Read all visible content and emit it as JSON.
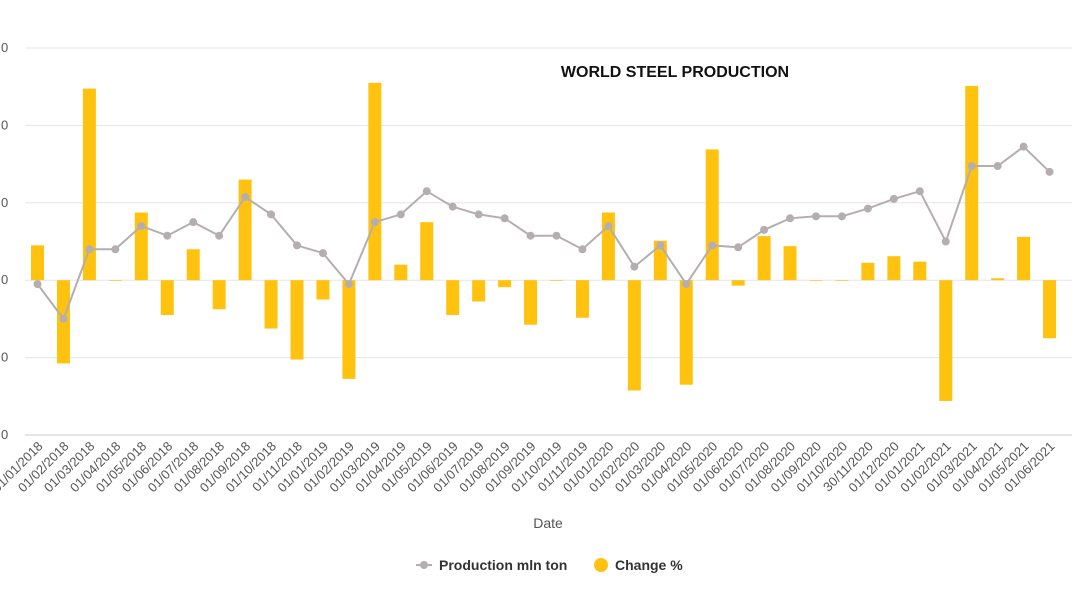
{
  "chart_data": {
    "type": "bar",
    "title": "WORLD STEEL PRODUCTION",
    "xlabel": "Date",
    "ylabel": "",
    "categories": [
      "01/01/2018",
      "01/02/2018",
      "01/03/2018",
      "01/04/2018",
      "01/05/2018",
      "01/06/2018",
      "01/07/2018",
      "01/08/2018",
      "01/09/2018",
      "01/10/2018",
      "01/11/2018",
      "01/01/2019",
      "01/02/2019",
      "01/03/2019",
      "01/04/2019",
      "01/05/2019",
      "01/06/2019",
      "01/07/2019",
      "01/08/2019",
      "01/09/2019",
      "01/10/2019",
      "01/11/2019",
      "01/01/2020",
      "01/02/2020",
      "01/03/2020",
      "01/04/2020",
      "01/05/2020",
      "01/06/2020",
      "01/07/2020",
      "01/08/2020",
      "01/09/2020",
      "01/10/2020",
      "30/11/2020",
      "01/12/2020",
      "01/01/2021",
      "01/02/2021",
      "01/03/2021",
      "01/04/2021",
      "01/05/2021",
      "01/06/2021"
    ],
    "y_tick_fragments": [
      "0",
      "0",
      "0",
      "0",
      "0",
      "0"
    ],
    "grid": true,
    "legend_position": "bottom",
    "series": [
      {
        "name": "Production mln ton",
        "type": "line",
        "color": "#b5aeb1",
        "values": [
          -0.1,
          -1.0,
          0.8,
          0.8,
          1.4,
          1.15,
          1.5,
          1.15,
          2.15,
          1.7,
          0.9,
          0.7,
          -0.1,
          1.5,
          1.7,
          2.3,
          1.9,
          1.7,
          1.6,
          1.15,
          1.15,
          0.8,
          1.4,
          0.35,
          0.9,
          -0.1,
          0.9,
          0.85,
          1.3,
          1.6,
          1.65,
          1.65,
          1.85,
          2.1,
          2.3,
          1.0,
          2.95,
          2.95,
          3.45,
          2.8
        ]
      },
      {
        "name": "Change %",
        "type": "bar",
        "color": "#ffc20e",
        "values": [
          0.9,
          -2.15,
          4.95,
          0.0,
          1.75,
          -0.9,
          0.8,
          -0.75,
          2.6,
          -1.25,
          -2.05,
          -0.5,
          -2.55,
          5.1,
          0.4,
          1.5,
          -0.9,
          -0.55,
          -0.18,
          -1.15,
          0.0,
          -0.97,
          1.75,
          -2.85,
          1.02,
          -2.7,
          3.38,
          -0.14,
          1.14,
          0.88,
          0.0,
          0.0,
          0.45,
          0.62,
          0.48,
          -3.12,
          5.02,
          0.05,
          1.12,
          -1.5
        ]
      }
    ],
    "ylim": [
      -4,
      6
    ]
  }
}
